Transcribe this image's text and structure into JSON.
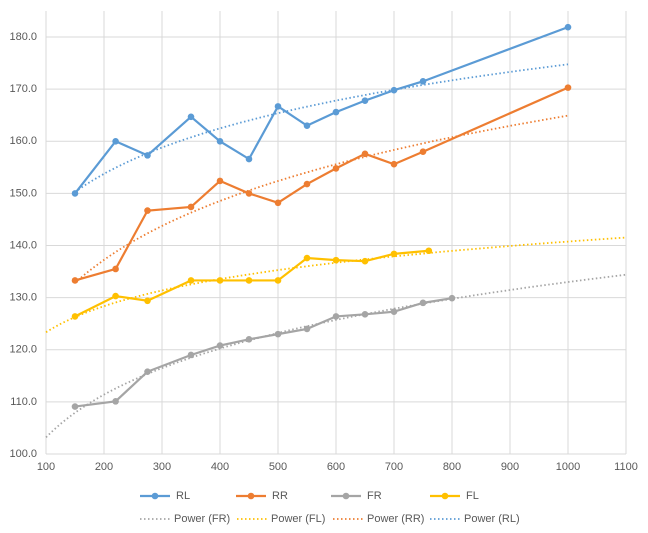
{
  "chart_data": {
    "type": "line",
    "xlim": [
      100,
      1100
    ],
    "xticks": [
      100,
      200,
      300,
      400,
      500,
      600,
      700,
      800,
      900,
      1000,
      1100
    ],
    "ylim": [
      100,
      185
    ],
    "yticks": [
      {
        "value": 100,
        "label": "100.0"
      },
      {
        "value": 110,
        "label": "110.0"
      },
      {
        "value": 120,
        "label": "120.0"
      },
      {
        "value": 130,
        "label": "130.0"
      },
      {
        "value": 140,
        "label": "140.0"
      },
      {
        "value": 150,
        "label": "150.0"
      },
      {
        "value": 160,
        "label": "160.0"
      },
      {
        "value": 170,
        "label": "170.0"
      },
      {
        "value": 180,
        "label": "180.0"
      }
    ],
    "grid": true,
    "legend": "bottom",
    "series": [
      {
        "name": "RL",
        "color": "#5b9bd5",
        "x": [
          150,
          220,
          275,
          350,
          400,
          450,
          500,
          550,
          600,
          650,
          700,
          750,
          1000
        ],
        "values": [
          150.0,
          160.0,
          157.3,
          164.7,
          160.0,
          156.6,
          166.7,
          163.0,
          165.6,
          167.8,
          169.8,
          171.5,
          181.9
        ]
      },
      {
        "name": "RR",
        "color": "#ed7d31",
        "x": [
          150,
          220,
          275,
          350,
          400,
          450,
          500,
          550,
          600,
          650,
          700,
          750,
          1000
        ],
        "values": [
          133.3,
          135.5,
          146.7,
          147.4,
          152.4,
          150.0,
          148.2,
          151.8,
          154.8,
          157.6,
          155.6,
          158.0,
          170.3
        ]
      },
      {
        "name": "FR",
        "color": "#a5a5a5",
        "x": [
          150,
          220,
          275,
          350,
          400,
          450,
          500,
          550,
          600,
          650,
          700,
          750,
          800
        ],
        "values": [
          109.1,
          110.1,
          115.8,
          119.0,
          120.8,
          122.0,
          123.0,
          124.0,
          126.4,
          126.8,
          127.3,
          129.0,
          129.9
        ]
      },
      {
        "name": "FL",
        "color": "#ffc000",
        "x": [
          150,
          220,
          275,
          350,
          400,
          450,
          500,
          550,
          600,
          650,
          700,
          760
        ],
        "values": [
          126.4,
          130.3,
          129.4,
          133.3,
          133.3,
          133.3,
          133.3,
          137.6,
          137.2,
          137.0,
          138.4,
          139.0
        ]
      }
    ],
    "trendlines": [
      {
        "name": "Power (FR)",
        "series": 2,
        "extend": true
      },
      {
        "name": "Power (FL)",
        "series": 3,
        "extend": true
      },
      {
        "name": "Power (RR)",
        "series": 1,
        "extend": false
      },
      {
        "name": "Power (RL)",
        "series": 0,
        "extend": false
      }
    ]
  }
}
